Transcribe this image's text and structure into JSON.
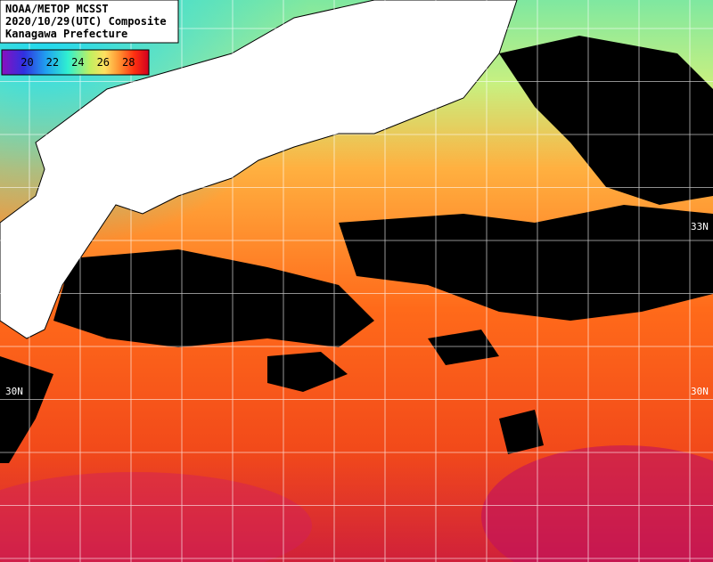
{
  "header": {
    "lines": [
      "NOAA/METOP MCSST",
      "2020/10/29(UTC) Composite",
      "Kanagawa Prefecture"
    ]
  },
  "colorbar": {
    "range": [
      18,
      29.6
    ],
    "ticks": [
      20,
      22,
      24,
      26,
      28
    ]
  },
  "grid_labels": [
    "33N",
    "30N",
    "30N"
  ]
}
